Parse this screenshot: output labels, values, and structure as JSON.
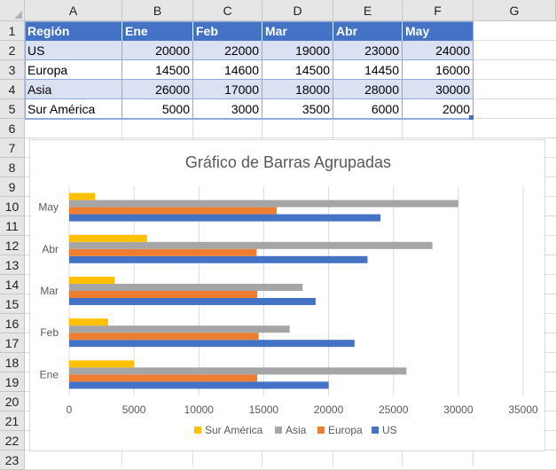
{
  "sheet": {
    "columns": [
      "A",
      "B",
      "C",
      "D",
      "E",
      "F",
      "G"
    ],
    "rows": [
      "1",
      "2",
      "3",
      "4",
      "5",
      "6",
      "7",
      "8",
      "9",
      "10",
      "11",
      "12",
      "13",
      "14",
      "15",
      "16",
      "17",
      "18",
      "19",
      "20",
      "21",
      "22",
      "23"
    ],
    "table": {
      "headers": [
        "Región",
        "Ene",
        "Feb",
        "Mar",
        "Abr",
        "May"
      ],
      "rows": [
        [
          "US",
          "20000",
          "22000",
          "19000",
          "23000",
          "24000"
        ],
        [
          "Europa",
          "14500",
          "14600",
          "14500",
          "14450",
          "16000"
        ],
        [
          "Asia",
          "26000",
          "17000",
          "18000",
          "28000",
          "30000"
        ],
        [
          "Sur América",
          "5000",
          "3000",
          "3500",
          "6000",
          "2000"
        ]
      ]
    }
  },
  "chart_data": {
    "type": "bar",
    "orientation": "horizontal",
    "title": "Gráfico de Barras Agrupadas",
    "categories": [
      "Ene",
      "Feb",
      "Mar",
      "Abr",
      "May"
    ],
    "series": [
      {
        "name": "US",
        "color": "#4472c4",
        "values": [
          20000,
          22000,
          19000,
          23000,
          24000
        ]
      },
      {
        "name": "Europa",
        "color": "#ed7d31",
        "values": [
          14500,
          14600,
          14500,
          14450,
          16000
        ]
      },
      {
        "name": "Asia",
        "color": "#a5a5a5",
        "values": [
          26000,
          17000,
          18000,
          28000,
          30000
        ]
      },
      {
        "name": "Sur América",
        "color": "#ffc000",
        "values": [
          5000,
          3000,
          3500,
          6000,
          2000
        ]
      }
    ],
    "xlim": [
      0,
      35000
    ],
    "xticks": [
      0,
      5000,
      10000,
      15000,
      20000,
      25000,
      30000,
      35000
    ],
    "xtick_labels": [
      "0",
      "5000",
      "10000",
      "15000",
      "20000",
      "25000",
      "30000",
      "35000"
    ],
    "legend_order": [
      "Sur América",
      "Asia",
      "Europa",
      "US"
    ],
    "legend_position": "bottom",
    "grid": true
  }
}
